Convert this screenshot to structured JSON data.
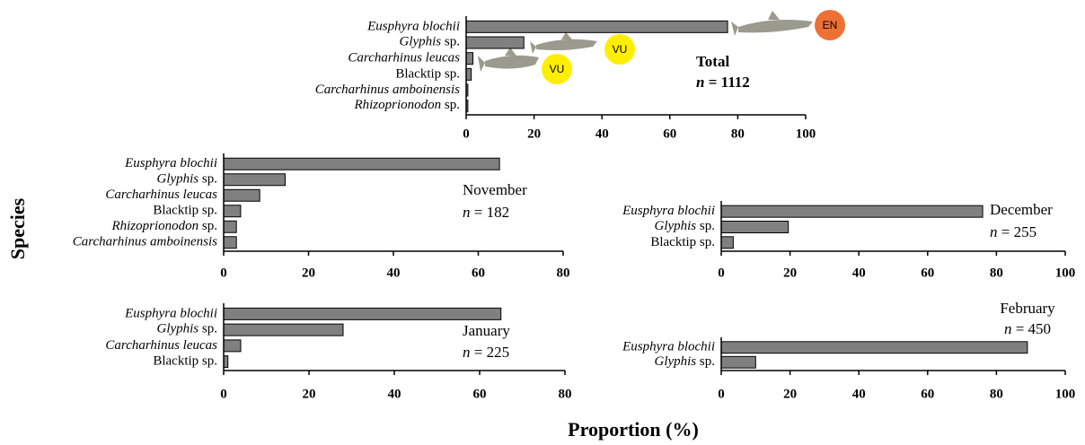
{
  "ylabel": "Species",
  "xlabel": "Proportion (%)",
  "chart_data": [
    {
      "type": "bar",
      "orientation": "horizontal",
      "title": "Total",
      "n_label": "n = 1112",
      "title_bold": true,
      "categories": [
        "Eusphyra blochii",
        "Glyphis sp.",
        "Carcharhinus leucas",
        "Blacktip sp.",
        "Carcharhinus amboinensis",
        "Rhizoprionodon sp."
      ],
      "italic": [
        true,
        true,
        true,
        false,
        true,
        true
      ],
      "values": [
        77,
        17,
        2,
        1.5,
        0.5,
        0.5
      ],
      "color": "#808080",
      "xlim": [
        0,
        100
      ],
      "xticks": [
        0,
        20,
        40,
        60,
        80,
        100
      ],
      "badges": [
        {
          "label": "EN",
          "color": "#ee7035"
        },
        {
          "label": "VU",
          "color": "#ffee00"
        },
        {
          "label": "VU",
          "color": "#ffee00"
        }
      ]
    },
    {
      "type": "bar",
      "orientation": "horizontal",
      "title": "November",
      "n_label": "n = 182",
      "title_bold": false,
      "categories": [
        "Eusphyra blochii",
        "Glyphis sp.",
        "Carcharhinus leucas",
        "Blacktip sp.",
        "Rhizoprionodon sp.",
        "Carcharhinus amboinensis"
      ],
      "italic": [
        true,
        true,
        true,
        false,
        true,
        true
      ],
      "values": [
        65,
        14.5,
        8.5,
        4,
        3,
        3
      ],
      "color": "#808080",
      "xlim": [
        0,
        80
      ],
      "xticks": [
        0,
        20,
        40,
        60,
        80
      ]
    },
    {
      "type": "bar",
      "orientation": "horizontal",
      "title": "December",
      "n_label": "n = 255",
      "title_bold": false,
      "categories": [
        "Eusphyra blochii",
        "Glyphis sp.",
        "Blacktip sp."
      ],
      "italic": [
        true,
        true,
        false
      ],
      "values": [
        76,
        19.5,
        3.5
      ],
      "color": "#808080",
      "xlim": [
        0,
        100
      ],
      "xticks": [
        0,
        20,
        40,
        60,
        80,
        100
      ]
    },
    {
      "type": "bar",
      "orientation": "horizontal",
      "title": "January",
      "n_label": "n = 225",
      "title_bold": false,
      "categories": [
        "Eusphyra blochii",
        "Glyphis sp.",
        "Carcharhinus leucas",
        "Blacktip sp."
      ],
      "italic": [
        true,
        true,
        true,
        false
      ],
      "values": [
        65,
        28,
        4,
        1
      ],
      "color": "#808080",
      "xlim": [
        0,
        80
      ],
      "xticks": [
        0,
        20,
        40,
        60,
        80
      ]
    },
    {
      "type": "bar",
      "orientation": "horizontal",
      "title": "February",
      "n_label": "n = 450",
      "title_bold": false,
      "categories": [
        "Eusphyra blochii",
        "Glyphis sp."
      ],
      "italic": [
        true,
        true
      ],
      "values": [
        89,
        10
      ],
      "color": "#808080",
      "xlim": [
        0,
        100
      ],
      "xticks": [
        0,
        20,
        40,
        60,
        80,
        100
      ]
    }
  ]
}
